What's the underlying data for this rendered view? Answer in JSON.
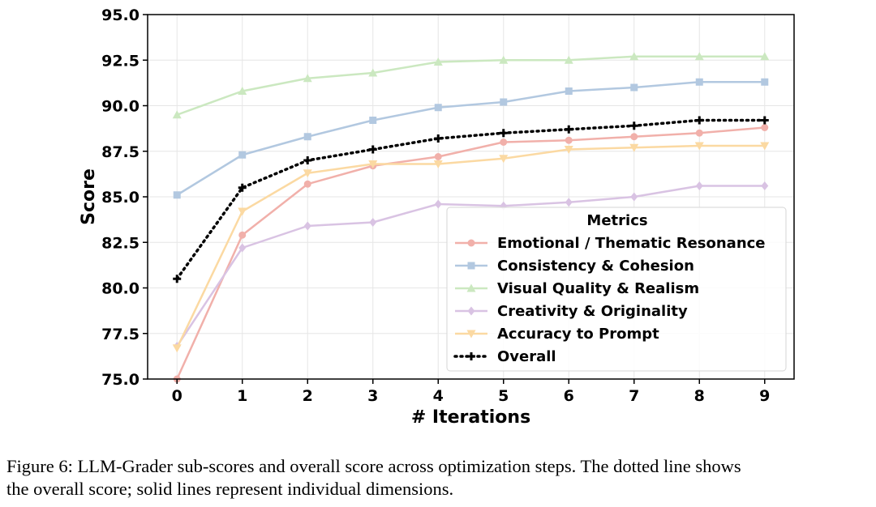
{
  "chart_data": {
    "type": "line",
    "xlabel": "# Iterations",
    "ylabel": "Score",
    "x": [
      0,
      1,
      2,
      3,
      4,
      5,
      6,
      7,
      8,
      9
    ],
    "xlim": [
      -0.45,
      9.45
    ],
    "ylim": [
      75.0,
      95.0
    ],
    "yticks": [
      75.0,
      77.5,
      80.0,
      82.5,
      85.0,
      87.5,
      90.0,
      92.5,
      95.0
    ],
    "ytick_labels": [
      "75.0",
      "77.5",
      "80.0",
      "82.5",
      "85.0",
      "87.5",
      "90.0",
      "92.5",
      "95.0"
    ],
    "xtick_labels": [
      "0",
      "1",
      "2",
      "3",
      "4",
      "5",
      "6",
      "7",
      "8",
      "9"
    ],
    "grid": true,
    "legend": {
      "title": "Metrics",
      "placement": "lower-right"
    },
    "series": [
      {
        "name": "Emotional / Thematic Resonance",
        "color": "#f1b0aa",
        "marker": "circle",
        "style": "solid",
        "values": [
          75.0,
          82.9,
          85.7,
          86.7,
          87.2,
          88.0,
          88.1,
          88.3,
          88.5,
          88.8
        ]
      },
      {
        "name": "Consistency & Cohesion",
        "color": "#b2c8e0",
        "marker": "square",
        "style": "solid",
        "values": [
          85.1,
          87.3,
          88.3,
          89.2,
          89.9,
          90.2,
          90.8,
          91.0,
          91.3,
          91.3
        ]
      },
      {
        "name": "Visual Quality & Realism",
        "color": "#cbe8c0",
        "marker": "triangle-up",
        "style": "solid",
        "values": [
          89.5,
          90.8,
          91.5,
          91.8,
          92.4,
          92.5,
          92.5,
          92.7,
          92.7,
          92.7
        ]
      },
      {
        "name": "Creativity & Originality",
        "color": "#d9c3e3",
        "marker": "diamond",
        "style": "solid",
        "values": [
          76.8,
          82.2,
          83.4,
          83.6,
          84.6,
          84.5,
          84.7,
          85.0,
          85.6,
          85.6
        ]
      },
      {
        "name": "Accuracy to Prompt",
        "color": "#fbd9a2",
        "marker": "triangle-down",
        "style": "solid",
        "values": [
          76.7,
          84.2,
          86.3,
          86.8,
          86.8,
          87.1,
          87.6,
          87.7,
          87.8,
          87.8
        ]
      },
      {
        "name": "Overall",
        "color": "#000000",
        "marker": "plus",
        "style": "dotted",
        "values": [
          80.5,
          85.5,
          87.0,
          87.6,
          88.2,
          88.5,
          88.7,
          88.9,
          89.2,
          89.2
        ]
      }
    ]
  },
  "caption": {
    "line1": "Figure 6: LLM-Grader sub-scores and overall score across optimization steps. The dotted line shows",
    "line2": "the overall score; solid lines represent individual dimensions."
  }
}
